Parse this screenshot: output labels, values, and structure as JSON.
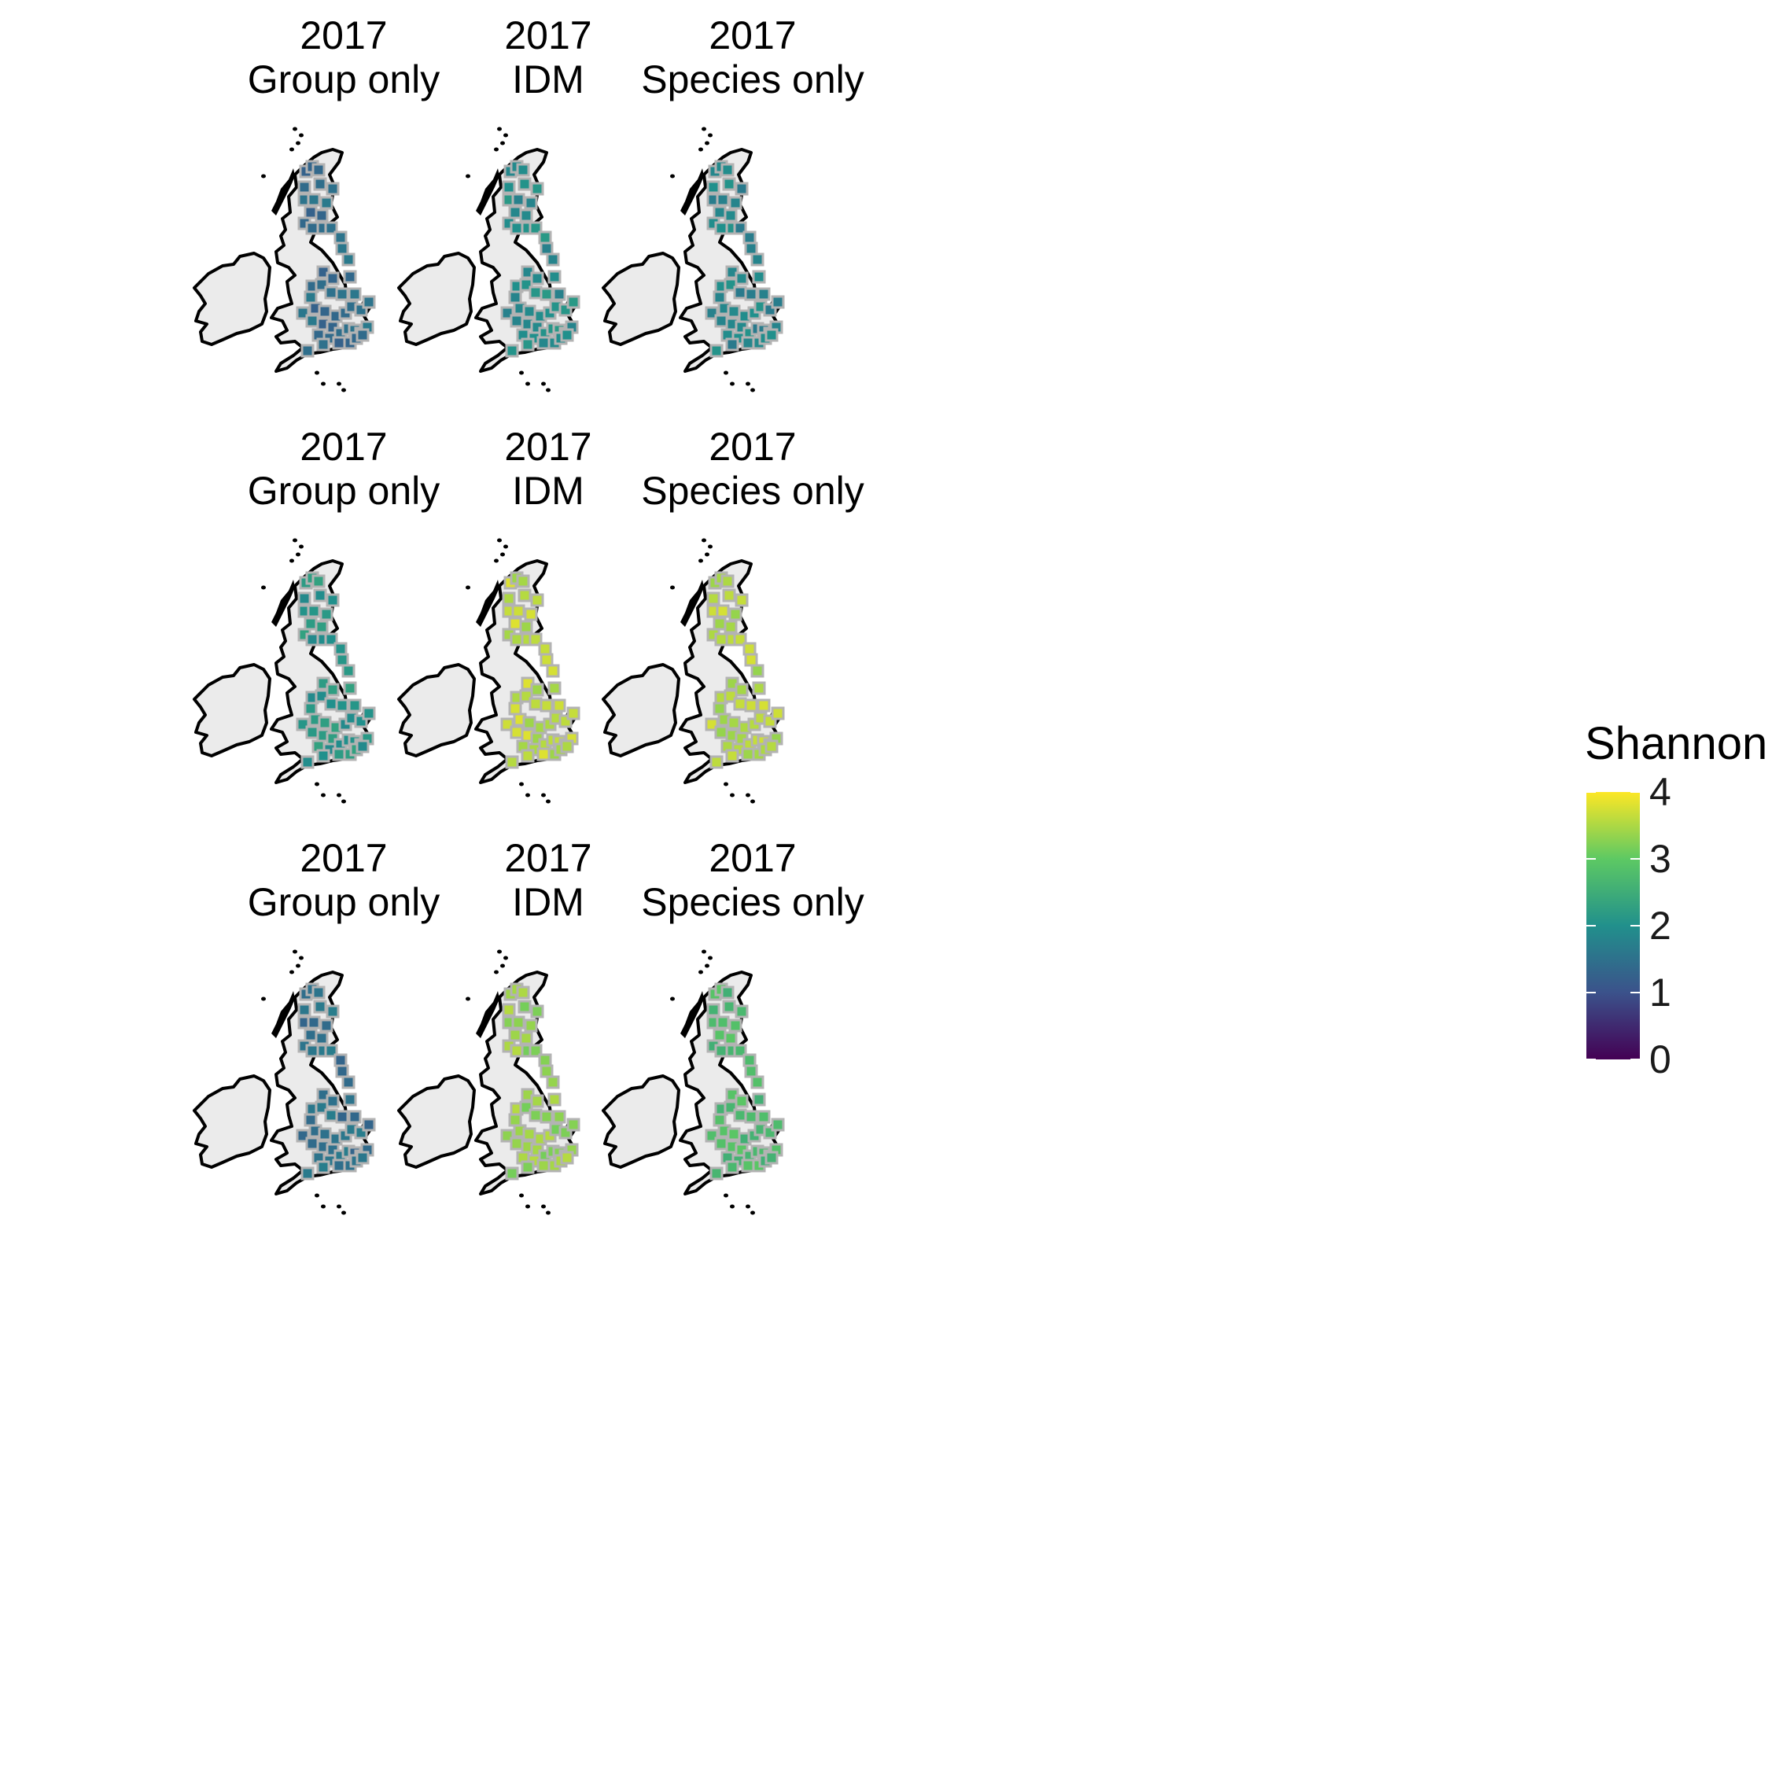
{
  "chart_data": {
    "type": "heatmap",
    "description_label": "Shannon",
    "panels": [
      {
        "row": 1,
        "year": "2017",
        "model": "Group only",
        "mean_value": 1.45
      },
      {
        "row": 1,
        "year": "2017",
        "model": "IDM",
        "mean_value": 1.95
      },
      {
        "row": 1,
        "year": "2017",
        "model": "Species only",
        "mean_value": 1.85
      },
      {
        "row": 2,
        "year": "2017",
        "model": "Group only",
        "mean_value": 2.1
      },
      {
        "row": 2,
        "year": "2017",
        "model": "IDM",
        "mean_value": 3.6
      },
      {
        "row": 2,
        "year": "2017",
        "model": "Species only",
        "mean_value": 3.55
      },
      {
        "row": 3,
        "year": "2017",
        "model": "Group only",
        "mean_value": 1.5
      },
      {
        "row": 3,
        "year": "2017",
        "model": "IDM",
        "mean_value": 3.35
      },
      {
        "row": 3,
        "year": "2017",
        "model": "Species only",
        "mean_value": 2.75
      }
    ],
    "legend": {
      "title": "Shannon",
      "min": 0,
      "max": 4,
      "ticks": [
        "0",
        "1",
        "2",
        "3",
        "4"
      ],
      "palette": [
        "#440154",
        "#3b528b",
        "#21908c",
        "#5dc963",
        "#fde725"
      ],
      "position": "right"
    }
  }
}
